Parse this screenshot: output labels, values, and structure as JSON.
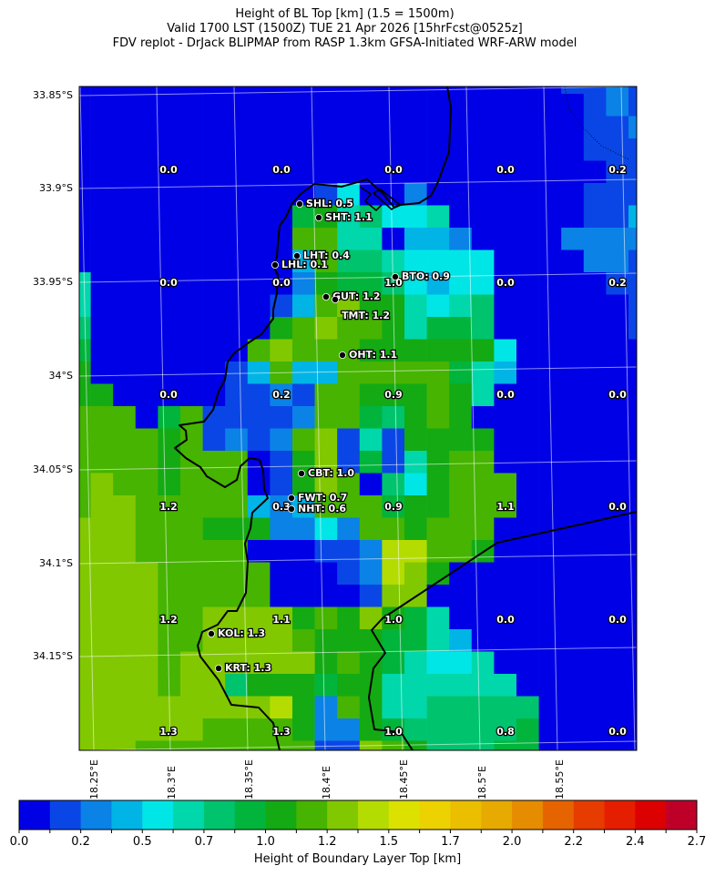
{
  "title": {
    "line1": "Height of BL Top [km] (1.5 = 1500m)",
    "line2": "Valid 1700 LST (1500Z) TUE 21 Apr 2026 [15hrFcst@0525z]",
    "line3": "FDV replot - DrJack BLIPMAP from RASP 1.3km GFSA-Initiated WRF-ARW model"
  },
  "lat_labels": [
    "33.85°S",
    "33.9°S",
    "33.95°S",
    "34°S",
    "34.05°S",
    "34.1°S",
    "34.15°S"
  ],
  "lon_labels": [
    "18.25°E",
    "18.3°E",
    "18.35°E",
    "18.4°E",
    "18.45°E",
    "18.5°E",
    "18.55°E"
  ],
  "heatmap": {
    "palette": [
      "#0000e6",
      "#0a46e6",
      "#0a82e6",
      "#00b4e6",
      "#00e6e6",
      "#00d7aa",
      "#00c36e",
      "#00b43c",
      "#14aa14",
      "#46b400",
      "#82c800",
      "#b4dc00",
      "#dce100",
      "#ebd200",
      "#ebbe00",
      "#e6aa00",
      "#e68c00",
      "#e66400",
      "#e63c00",
      "#e61e00",
      "#dc0000",
      "#be0028"
    ],
    "levels_note_range": [
      0.0,
      2.7
    ],
    "rows": [
      "00000000000000000000001121",
      "00000000000000000000000121",
      "00000000000000000000000112",
      "00000000000000000000000111",
      "00000000000000000000000011",
      "00000000000140020000000111",
      "00000000007856445000000113",
      "00000000009955033200002222",
      "00000000003966544440000221",
      "50000000002877643440000011",
      "500000000139a8854560000001",
      "60000000089a99857760000001",
      "700000009a9998888884000000",
      "80000001393399999753000000",
      "88000001121998889850000000",
      "99907911112997689800000000",
      "99998912129a15188880000000",
      "99998999018a17158990000000",
      "9a998999018a90648999000000",
      "9aa99999323999788999000000",
      "aaa99988822429989990000000",
      "aaa99999000112bb9980000000",
      "aaaa9999900012ba8000000000",
      "aaaa9999900001aa0000000000",
      "aaaa99aaaa898a875000000000",
      "aaaa99aaaa9888775300000000",
      "aaaa9aaaaaa898754450000000",
      "aaaa9aa6888788555555000000",
      "aaaaaaaaab8298556666600000",
      "aaaaaa99998228766666700000",
      "aaa9999999911a986667700000"
    ]
  },
  "grid_values": [
    [
      "0.0",
      "0.0",
      "0.0",
      "0.0",
      "0.2"
    ],
    [
      "0.0",
      "0.0",
      "1.0",
      "0.0",
      "0.2"
    ],
    [
      "0.0",
      "0.2",
      "0.9",
      "0.0",
      "0.0"
    ],
    [
      "1.2",
      "0.3",
      "0.9",
      "1.1",
      "0.0"
    ],
    [
      "1.2",
      "1.1",
      "1.0",
      "0.0",
      "0.0"
    ],
    [
      "1.3",
      "1.3",
      "1.0",
      "0.8",
      "0.0"
    ]
  ],
  "stations": [
    {
      "label": "SHL: 0.5"
    },
    {
      "label": "SHT: 1.1"
    },
    {
      "label": "LHT: 0.4"
    },
    {
      "label": "LHL: 0.1"
    },
    {
      "label": "BTO: 0.9"
    },
    {
      "label": "GUT: 1.2"
    },
    {
      "label": "TMT: 1.2"
    },
    {
      "label": "OHT: 1.1"
    },
    {
      "label": "CBT: 1.0"
    },
    {
      "label": "FWT: 0.7"
    },
    {
      "label": "NHT: 0.6"
    },
    {
      "label": "KOL: 1.3"
    },
    {
      "label": "KRT: 1.3"
    }
  ],
  "colorbar": {
    "ticks": [
      "0.0",
      "0.2",
      "0.5",
      "0.7",
      "1.0",
      "1.2",
      "1.5",
      "1.7",
      "2.0",
      "2.2",
      "2.4",
      "2.7"
    ],
    "label": "Height of Boundary Layer Top [km]",
    "range": [
      0.0,
      2.7
    ]
  }
}
